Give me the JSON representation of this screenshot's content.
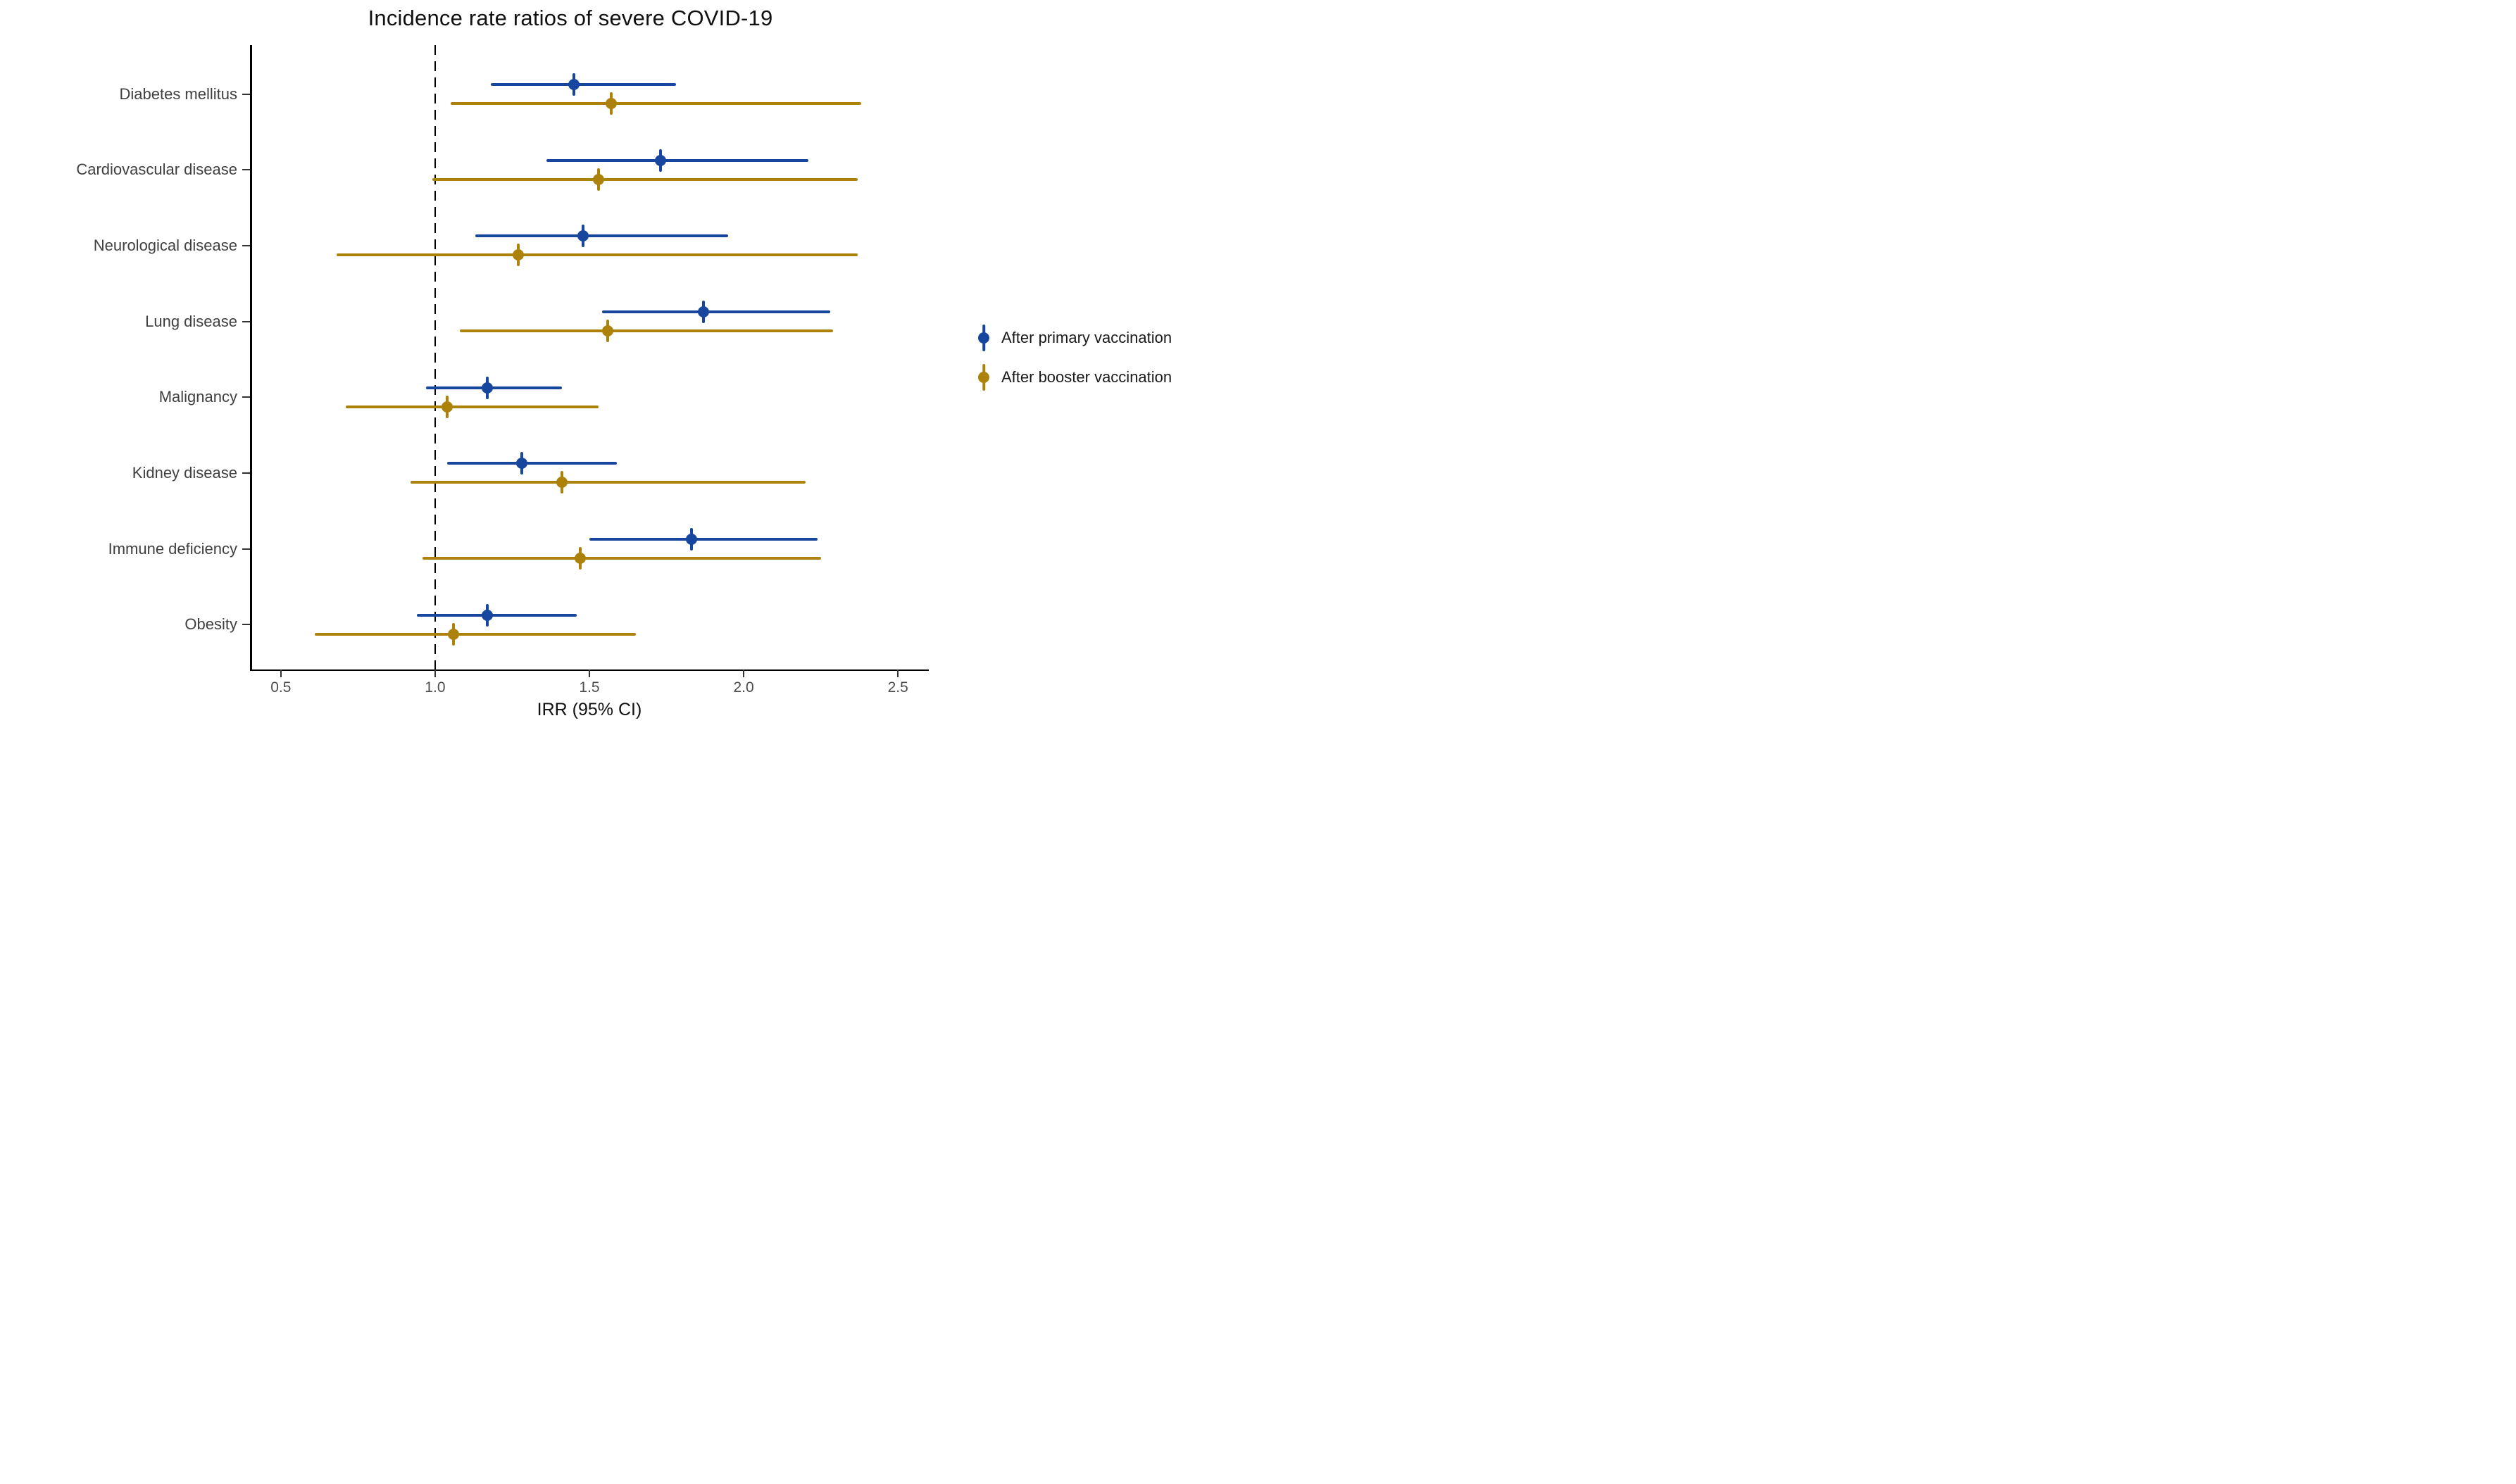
{
  "figure": {
    "title": "Incidence rate ratios of severe COVID-19",
    "x_axis_label": "IRR (95% CI)"
  },
  "legend": {
    "position": "right",
    "items": [
      {
        "label": "After primary vaccination",
        "color": "#17469e"
      },
      {
        "label": "After booster vaccination",
        "color": "#ad820b"
      }
    ]
  },
  "chart_data": {
    "type": "scatter",
    "subtype": "forest-plot-pointrange",
    "orientation": "horizontal",
    "title": "Incidence rate ratios of severe COVID-19",
    "xlabel": "IRR (95% CI)",
    "ylabel": "",
    "grid": "off",
    "legend_position": "right",
    "x_domain": [
      0.4,
      2.6
    ],
    "x_ticks": [
      "0.5",
      "1.0",
      "1.5",
      "2.0",
      "2.5"
    ],
    "reference_line_x": 1.0,
    "categories": [
      "Diabetes mellitus",
      "Cardiovascular disease",
      "Neurological disease",
      "Lung disease",
      "Malignancy",
      "Kidney disease",
      "Immune deficiency",
      "Obesity"
    ],
    "series": [
      {
        "name": "After primary vaccination",
        "color": "#17469e",
        "values": [
          {
            "category": "Diabetes mellitus",
            "est": 1.45,
            "lo": 1.18,
            "hi": 1.78
          },
          {
            "category": "Cardiovascular disease",
            "est": 1.73,
            "lo": 1.36,
            "hi": 2.21
          },
          {
            "category": "Neurological disease",
            "est": 1.48,
            "lo": 1.13,
            "hi": 1.95
          },
          {
            "category": "Lung disease",
            "est": 1.87,
            "lo": 1.54,
            "hi": 2.28
          },
          {
            "category": "Malignancy",
            "est": 1.17,
            "lo": 0.97,
            "hi": 1.41
          },
          {
            "category": "Kidney disease",
            "est": 1.28,
            "lo": 1.04,
            "hi": 1.59
          },
          {
            "category": "Immune deficiency",
            "est": 1.83,
            "lo": 1.5,
            "hi": 2.24
          },
          {
            "category": "Obesity",
            "est": 1.17,
            "lo": 0.94,
            "hi": 1.46
          }
        ]
      },
      {
        "name": "After booster vaccination",
        "color": "#ad820b",
        "values": [
          {
            "category": "Diabetes mellitus",
            "est": 1.57,
            "lo": 1.05,
            "hi": 2.38
          },
          {
            "category": "Cardiovascular disease",
            "est": 1.53,
            "lo": 0.99,
            "hi": 2.37
          },
          {
            "category": "Neurological disease",
            "est": 1.27,
            "lo": 0.68,
            "hi": 2.37
          },
          {
            "category": "Lung disease",
            "est": 1.56,
            "lo": 1.08,
            "hi": 2.29
          },
          {
            "category": "Malignancy",
            "est": 1.04,
            "lo": 0.71,
            "hi": 1.53
          },
          {
            "category": "Kidney disease",
            "est": 1.41,
            "lo": 0.92,
            "hi": 2.2
          },
          {
            "category": "Immune deficiency",
            "est": 1.47,
            "lo": 0.96,
            "hi": 2.25
          },
          {
            "category": "Obesity",
            "est": 1.06,
            "lo": 0.61,
            "hi": 1.65
          }
        ]
      }
    ]
  }
}
